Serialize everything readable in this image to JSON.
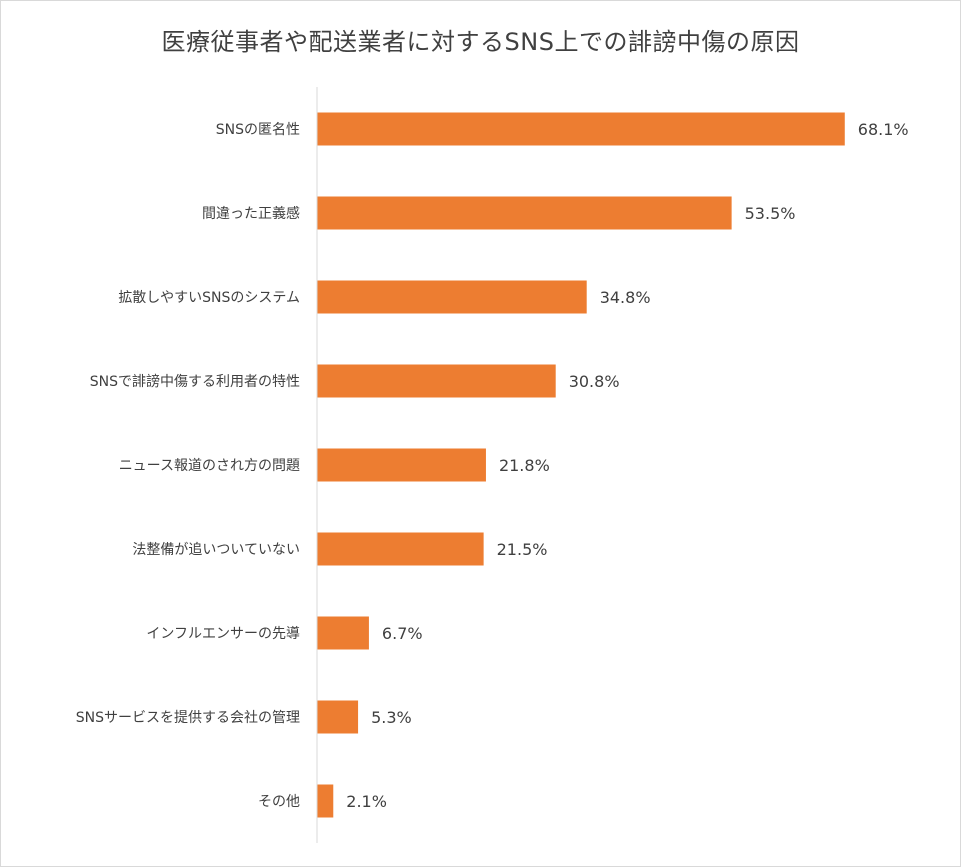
{
  "chart_data": {
    "type": "bar",
    "orientation": "horizontal",
    "title": "医療従事者や配送業者に対するSNS上での誹謗中傷の原因",
    "categories": [
      "SNSの匿名性",
      "間違った正義感",
      "拡散しやすいSNSのシステム",
      "SNSで誹謗中傷する利用者の特性",
      "ニュース報道のされ方の問題",
      "法整備が追いついていない",
      "インフルエンサーの先導",
      "SNSサービスを提供する会社の管理",
      "その他"
    ],
    "values": [
      68.1,
      53.5,
      34.8,
      30.8,
      21.8,
      21.5,
      6.7,
      5.3,
      2.1
    ],
    "value_labels": [
      "68.1%",
      "53.5%",
      "34.8%",
      "30.8%",
      "21.8%",
      "21.5%",
      "6.7%",
      "5.3%",
      "2.1%"
    ],
    "xlim": [
      0,
      80
    ],
    "grid": false,
    "legend": "none",
    "bar_color": "#ed7d31",
    "axis_color": "#d9d9d9"
  }
}
